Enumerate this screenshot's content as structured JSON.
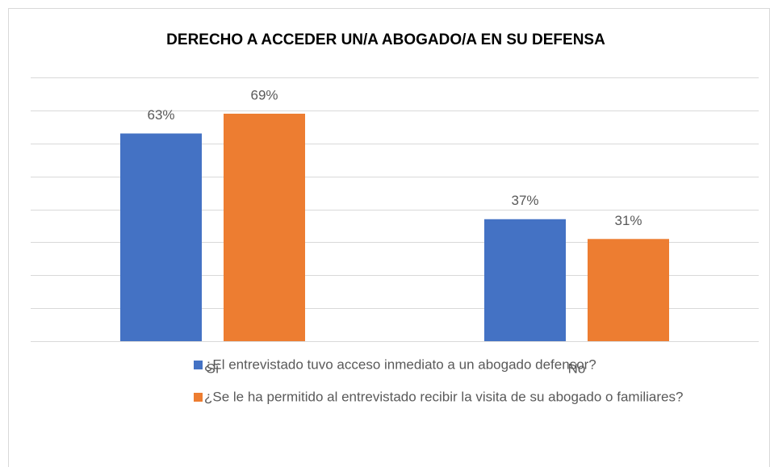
{
  "chart_data": {
    "type": "bar",
    "title": "DERECHO A ACCEDER UN/A ABOGADO/A EN SU DEFENSA",
    "categories": [
      "Sí",
      "No"
    ],
    "series": [
      {
        "name": "¿El entrevistado tuvo acceso inmediato a un abogado defensor?",
        "color": "#4472c4",
        "values": [
          63,
          37
        ],
        "value_labels": [
          "63%",
          "37%"
        ]
      },
      {
        "name": "¿Se le ha permitido al entrevistado recibir la visita de su abogado o familiares?",
        "color": "#ed7d31",
        "values": [
          69,
          31
        ],
        "value_labels": [
          "69%",
          "31%"
        ]
      }
    ],
    "ylim": [
      0,
      80
    ],
    "yticks": [
      0,
      10,
      20,
      30,
      40,
      50,
      60,
      70,
      80
    ],
    "grid": true,
    "legend": "bottom"
  }
}
